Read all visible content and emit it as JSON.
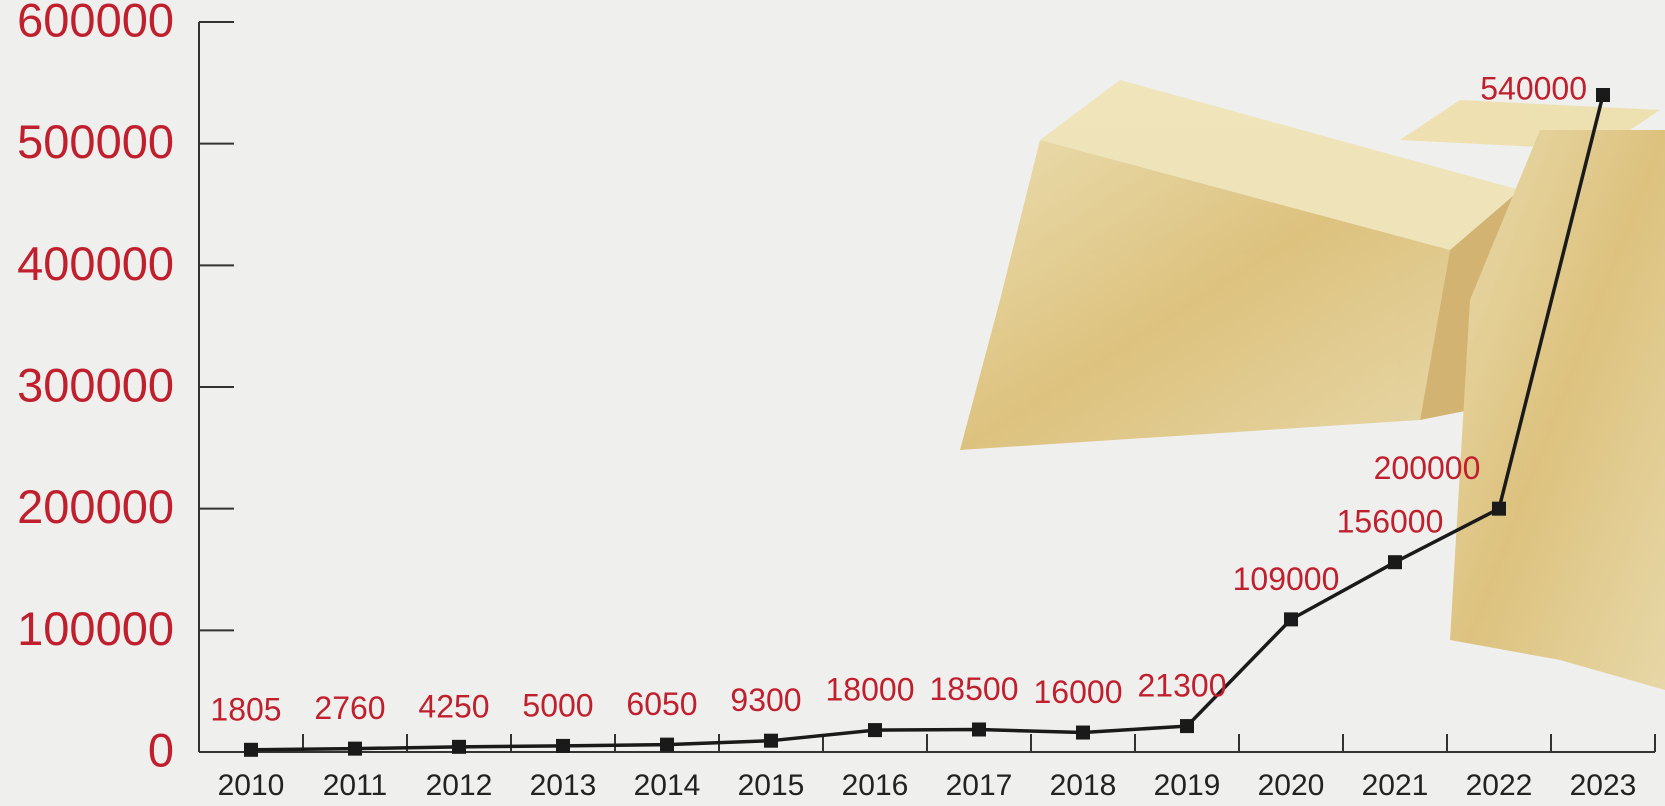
{
  "chart_data": {
    "type": "line",
    "categories": [
      "2010",
      "2011",
      "2012",
      "2013",
      "2014",
      "2015",
      "2016",
      "2017",
      "2018",
      "2019",
      "2020",
      "2021",
      "2022",
      "2023"
    ],
    "values": [
      1805,
      2760,
      4250,
      5000,
      6050,
      9300,
      18000,
      18500,
      16000,
      21300,
      109000,
      156000,
      200000,
      540000
    ],
    "color": "#1a1a1a",
    "ylim": [
      0,
      600000
    ],
    "yticks": [
      0,
      100000,
      200000,
      300000,
      400000,
      500000,
      600000
    ]
  }
}
